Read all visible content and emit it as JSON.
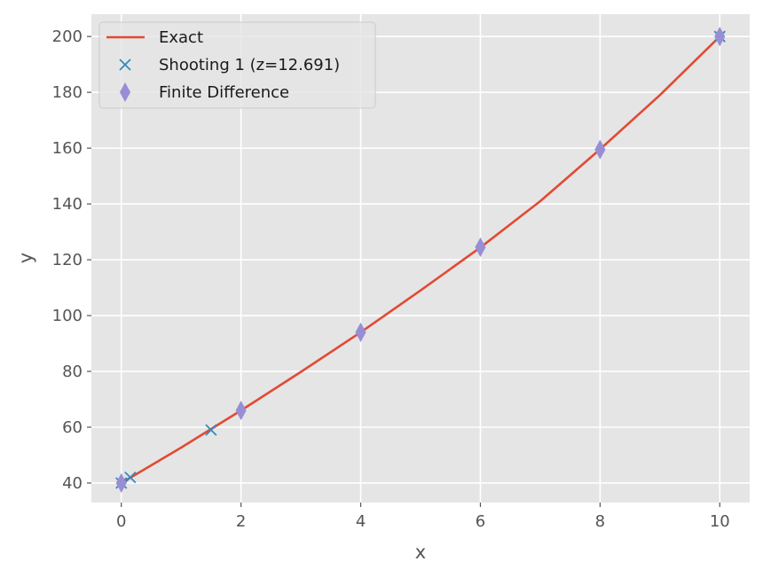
{
  "chart_data": {
    "type": "line",
    "title": "",
    "xlabel": "x",
    "ylabel": "y",
    "xlim": [
      -0.5,
      10.5
    ],
    "ylim": [
      33,
      208
    ],
    "xticks": [
      0,
      2,
      4,
      6,
      8,
      10
    ],
    "yticks": [
      40,
      60,
      80,
      100,
      120,
      140,
      160,
      180,
      200
    ],
    "grid": true,
    "legend_position": "top-left",
    "series": [
      {
        "name": "Exact",
        "style": "line",
        "color": "#E24A33",
        "x": [
          0,
          1,
          2,
          3,
          4,
          5,
          6,
          7,
          8,
          9,
          10
        ],
        "y": [
          40,
          52.7,
          66.0,
          79.8,
          94.0,
          109.0,
          124.4,
          141.0,
          159.6,
          179.0,
          200
        ]
      },
      {
        "name": "Shooting 1 (z=12.691)",
        "style": "x-marker",
        "color": "#348ABD",
        "x": [
          0,
          0.15,
          1.5,
          10
        ],
        "y": [
          40,
          42,
          59,
          200
        ]
      },
      {
        "name": "Finite Difference",
        "style": "diamond-marker",
        "color": "#988ED5",
        "x": [
          0,
          2,
          4,
          6,
          8,
          10
        ],
        "y": [
          40,
          66,
          94,
          124.5,
          159.5,
          200
        ]
      }
    ]
  }
}
